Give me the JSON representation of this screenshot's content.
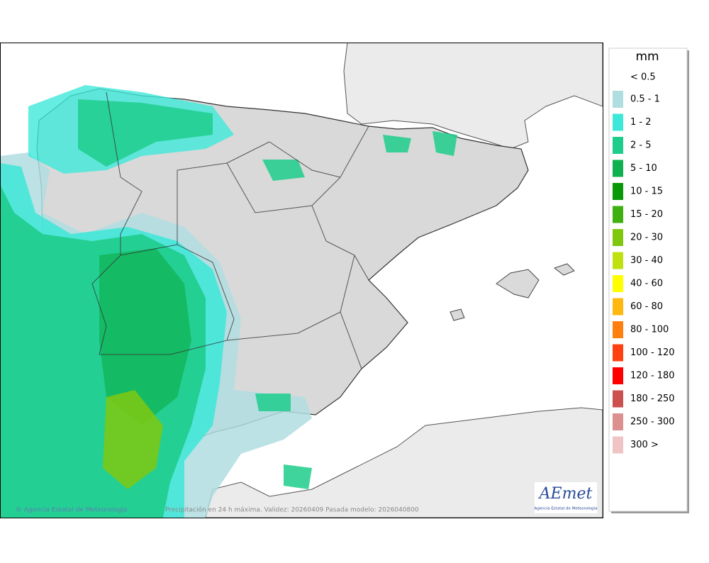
{
  "legend": {
    "title": "mm",
    "items": [
      {
        "label": "< 0.5",
        "color": null
      },
      {
        "label": "0.5 - 1",
        "color": "#b0dde0"
      },
      {
        "label": "1 - 2",
        "color": "#3de8d8"
      },
      {
        "label": "2 - 5",
        "color": "#1fcc8c"
      },
      {
        "label": "5 - 10",
        "color": "#10b050"
      },
      {
        "label": "10 - 15",
        "color": "#089808"
      },
      {
        "label": "15 - 20",
        "color": "#3fb010"
      },
      {
        "label": "20 - 30",
        "color": "#7fc80f"
      },
      {
        "label": "30 - 40",
        "color": "#c0e010"
      },
      {
        "label": "40 - 60",
        "color": "#ffff00"
      },
      {
        "label": "60 - 80",
        "color": "#ffb810"
      },
      {
        "label": "80 - 100",
        "color": "#ff8010"
      },
      {
        "label": "100 - 120",
        "color": "#ff4010"
      },
      {
        "label": "120 - 180",
        "color": "#ff0000"
      },
      {
        "label": "180 - 250",
        "color": "#cc5050"
      },
      {
        "label": "250 - 300",
        "color": "#dd9090"
      },
      {
        "label": "300 >",
        "color": "#f0c4c4"
      }
    ]
  },
  "footer": {
    "credit": "© Agencia Estatal de Meteorología",
    "caption": "Precipitación en 24 h máxima. Validez: 20260409 Pasada modelo: 2026040800"
  },
  "logo": {
    "name": "AEmet",
    "subtitle": "Agencia Estatal de Meteorología"
  }
}
